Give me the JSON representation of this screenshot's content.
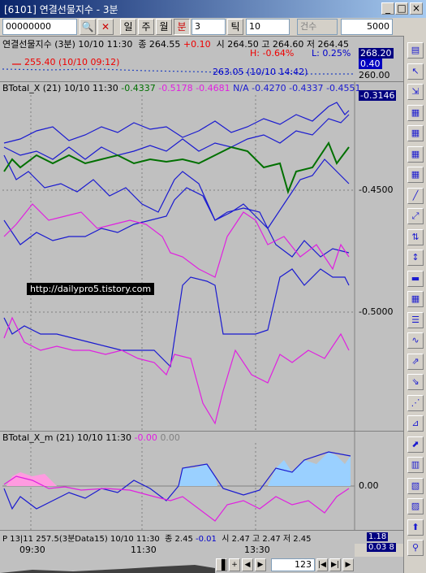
{
  "window": {
    "title": "[6101] 연결선물지수 - 3분"
  },
  "toolbar": {
    "code": "00000000",
    "periods": [
      "일",
      "주",
      "월",
      "분"
    ],
    "minute_value": "3",
    "tick": "틱",
    "tick_value": "10",
    "count_label": "건수",
    "count_value": "5000"
  },
  "price_panel": {
    "title": "연결선물지수 (3분) 10/10 11:30",
    "close": "종 264.55",
    "change": "+0.10",
    "open_high_low": "시 264.50 고 264.60 저 264.45",
    "high_pct": "H: -0.64%",
    "low_pct": "L: 0.25%",
    "min_note": "255.40 (10/10 09:12)",
    "max_note": "263.05 (10/10 14:42)",
    "axis": [
      "268.20",
      "0.40",
      "260.00"
    ]
  },
  "main_panel": {
    "title": "BTotal_X  (21) 10/10 11:30",
    "values": [
      "-0.4337",
      "-0.5178",
      "-0.4681",
      "N/A",
      "-0.4270",
      "-0.4337",
      "-0.4551"
    ],
    "axis": [
      "-0.3146",
      "-0.4500",
      "-0.5000"
    ],
    "watermark": "http://dailypro5.tistory.com"
  },
  "sub_panel": {
    "title": "BTotal_X_m  (21) 10/10 11:30",
    "values": [
      "-0.00",
      "0.00"
    ],
    "axis": [
      "0.00"
    ]
  },
  "volume_panel": {
    "title": "P 13|11 257.5(3분Data15) 10/10 11:30",
    "close": "종 2.45",
    "change": "-0.01",
    "open_high_low": "시 2.47 고 2.47 저 2.45",
    "axis": [
      "1.18",
      "0.03 8"
    ]
  },
  "time_axis": [
    "09:30",
    "11:30",
    "13:30"
  ],
  "scroll": {
    "count": "123"
  }
}
